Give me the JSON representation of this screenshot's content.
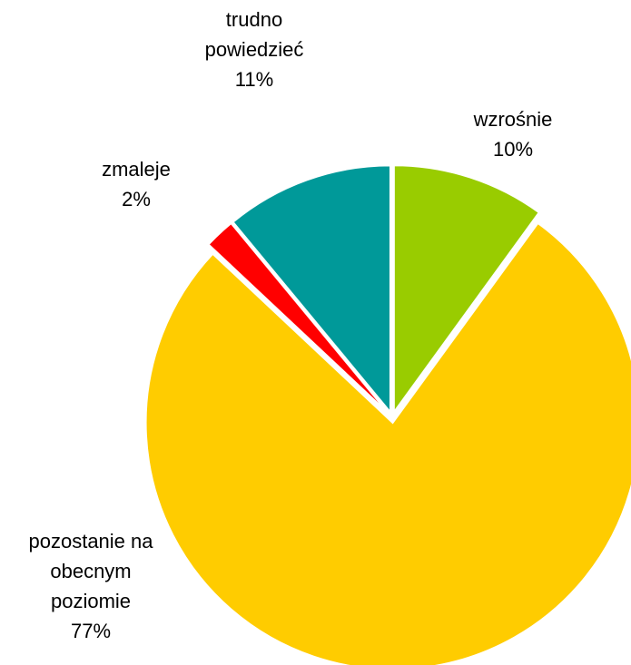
{
  "chart_data": {
    "type": "pie",
    "categories": [
      "wzrośnie",
      "pozostanie na obecnym poziomie",
      "zmaleje",
      "trudno powiedzieć"
    ],
    "values": [
      10,
      77,
      2,
      11
    ],
    "value_labels": [
      "10%",
      "77%",
      "2%",
      "11%"
    ],
    "colors": [
      "#99cc00",
      "#ffcc00",
      "#ff0000",
      "#009999"
    ]
  }
}
